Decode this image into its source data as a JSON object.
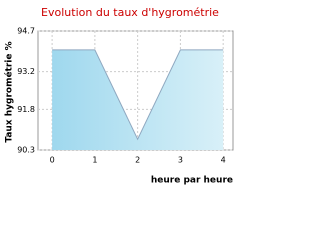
{
  "chart_data": {
    "type": "area",
    "title": "Evolution du taux d'hygrométrie",
    "x_label": "heure par heure",
    "y_label": "Taux hygrométrie %",
    "x": [
      0,
      1,
      2,
      3,
      4
    ],
    "values": [
      94.0,
      94.0,
      90.7,
      94.0,
      94.0
    ],
    "color": "#8fa8c0",
    "fill": "#a8dcef",
    "xlim": [
      -0.33,
      4.23
    ],
    "xticks": [
      0,
      1,
      2,
      3,
      4
    ],
    "ylim": [
      90.3,
      94.7
    ],
    "yticks": [
      90.3,
      91.8,
      93.2,
      94.7
    ],
    "grid": true
  }
}
